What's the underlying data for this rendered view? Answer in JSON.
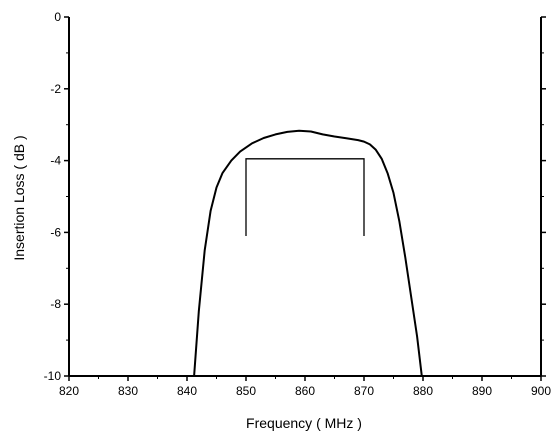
{
  "chart_data": {
    "type": "line",
    "xlabel": "Frequency ( MHz )",
    "ylabel": "Insertion Loss ( dB )",
    "xlim": [
      820,
      900
    ],
    "ylim": [
      -10,
      0
    ],
    "x_ticks": [
      820,
      830,
      840,
      850,
      860,
      870,
      880,
      890,
      900
    ],
    "x_tick_labels": [
      "820",
      "830",
      "840",
      "850",
      "860",
      "870",
      "880",
      "890",
      "900"
    ],
    "y_ticks": [
      0,
      -2,
      -4,
      -6,
      -8,
      -10
    ],
    "y_tick_labels": [
      "0",
      "-2",
      "-4",
      "-6",
      "-8",
      "-10"
    ],
    "grid": false,
    "series": [
      {
        "x": [
          841.2,
          842.0,
          843.0,
          844.0,
          845.0,
          846.0,
          847.5,
          849.0,
          851.0,
          853.0,
          855.0,
          857.0,
          859.0,
          861.0,
          863.0,
          865.0,
          867.0,
          869.0,
          870.0,
          871.0,
          872.0,
          873.0,
          874.0,
          875.0,
          876.0,
          877.0,
          878.0,
          879.0,
          879.8
        ],
        "y": [
          -10.0,
          -8.2,
          -6.5,
          -5.4,
          -4.75,
          -4.35,
          -4.0,
          -3.75,
          -3.52,
          -3.37,
          -3.27,
          -3.2,
          -3.17,
          -3.19,
          -3.27,
          -3.33,
          -3.38,
          -3.43,
          -3.47,
          -3.55,
          -3.7,
          -3.95,
          -4.35,
          -4.9,
          -5.7,
          -6.7,
          -7.8,
          -8.9,
          -10.0
        ]
      }
    ],
    "spec_mask": {
      "x": [
        850,
        850,
        870,
        870
      ],
      "y": [
        -6.1,
        -3.95,
        -3.95,
        -6.1
      ]
    }
  }
}
